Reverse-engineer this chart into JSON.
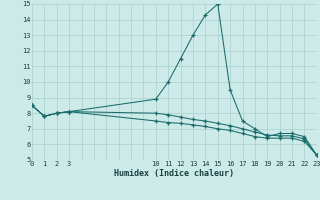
{
  "xlabel": "Humidex (Indice chaleur)",
  "bg_color": "#cceae8",
  "line_color": "#1a6b6b",
  "grid_color": "#aacfcd",
  "x_hours": [
    0,
    1,
    2,
    3,
    10,
    11,
    12,
    13,
    14,
    15,
    16,
    17,
    18,
    19,
    20,
    21,
    22,
    23
  ],
  "y_humidex": [
    8.5,
    7.8,
    8.0,
    8.1,
    8.9,
    10.0,
    11.5,
    13.0,
    14.3,
    15.0,
    9.5,
    7.5,
    7.0,
    6.5,
    6.7,
    6.7,
    6.5,
    5.3
  ],
  "y_dew": [
    8.5,
    7.8,
    8.0,
    8.1,
    7.5,
    7.4,
    7.35,
    7.25,
    7.15,
    7.0,
    6.9,
    6.7,
    6.5,
    6.4,
    6.4,
    6.4,
    6.2,
    5.3
  ],
  "y_temp": [
    8.5,
    7.8,
    8.0,
    8.1,
    8.0,
    7.9,
    7.75,
    7.6,
    7.5,
    7.35,
    7.2,
    7.0,
    6.8,
    6.6,
    6.55,
    6.55,
    6.35,
    5.3
  ],
  "ylim": [
    5,
    15
  ],
  "xlim": [
    0,
    23
  ],
  "yticks": [
    5,
    6,
    7,
    8,
    9,
    10,
    11,
    12,
    13,
    14,
    15
  ],
  "xticks": [
    0,
    1,
    2,
    3,
    10,
    11,
    12,
    13,
    14,
    15,
    16,
    17,
    18,
    19,
    20,
    21,
    22,
    23
  ]
}
